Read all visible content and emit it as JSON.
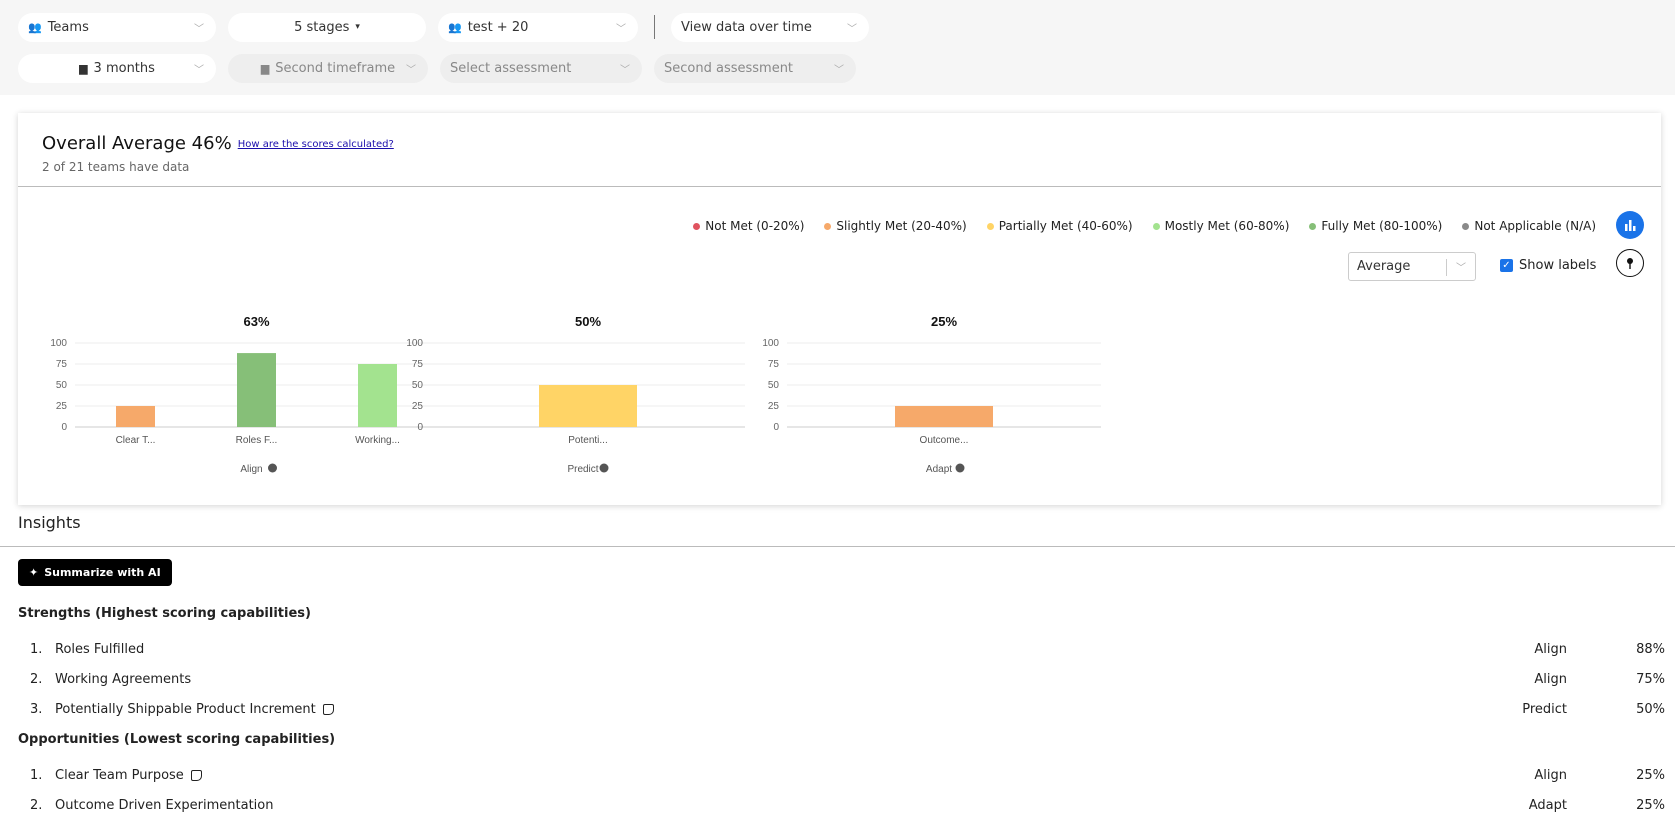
{
  "filters": {
    "row1": [
      {
        "icon": "users-icon",
        "label": "Teams"
      },
      {
        "label": "5 stages",
        "caret": "▾"
      },
      {
        "icon": "users-icon",
        "label": "test + 20"
      },
      {
        "label": "View data over time"
      }
    ],
    "row2": [
      {
        "icon": "calendar-icon",
        "label": "3 months"
      },
      {
        "icon": "calendar-icon",
        "label": "Second timeframe",
        "disabled": true
      },
      {
        "label": "Select assessment",
        "disabled": true
      },
      {
        "label": "Second assessment",
        "disabled": true
      }
    ]
  },
  "summary": {
    "title": "Overall Average 46%",
    "link": "How are the scores calculated?",
    "subtitle": "2 of 21 teams have data"
  },
  "legend": [
    {
      "label": "Not Met (0-20%)",
      "color": "#e0535f"
    },
    {
      "label": "Slightly Met (20-40%)",
      "color": "#f6a96a"
    },
    {
      "label": "Partially Met (40-60%)",
      "color": "#ffd466"
    },
    {
      "label": "Mostly Met (60-80%)",
      "color": "#a3e38f"
    },
    {
      "label": "Fully Met (80-100%)",
      "color": "#86bf78"
    },
    {
      "label": "Not Applicable (N/A)",
      "color": "#8a8a8a"
    }
  ],
  "controls": {
    "aggregate": "Average",
    "show_labels": "Show labels",
    "show_labels_checked": true
  },
  "chart_data": [
    {
      "type": "bar",
      "title": "63%",
      "xlabel": "Align",
      "ylim": [
        0,
        100
      ],
      "yticks": [
        0,
        25,
        50,
        75,
        100
      ],
      "grid": true,
      "categories": [
        "Clear T...",
        "Roles F...",
        "Working..."
      ],
      "values": [
        25,
        88,
        75
      ],
      "colors": [
        "#f6a96a",
        "#86bf78",
        "#a3e38f"
      ]
    },
    {
      "type": "bar",
      "title": "50%",
      "xlabel": "Predict",
      "ylim": [
        0,
        100
      ],
      "yticks": [
        0,
        25,
        50,
        75,
        100
      ],
      "grid": true,
      "categories": [
        "Potenti..."
      ],
      "values": [
        50
      ],
      "colors": [
        "#ffd466"
      ]
    },
    {
      "type": "bar",
      "title": "25%",
      "xlabel": "Adapt",
      "ylim": [
        0,
        100
      ],
      "yticks": [
        0,
        25,
        50,
        75,
        100
      ],
      "grid": true,
      "categories": [
        "Outcome..."
      ],
      "values": [
        25
      ],
      "colors": [
        "#f6a96a"
      ]
    }
  ],
  "insights": {
    "title": "Insights",
    "ai_button": "Summarize with AI",
    "strengths_title": "Strengths (Highest scoring capabilities)",
    "strengths": [
      {
        "num": "1.",
        "name": "Roles Fulfilled",
        "category": "Align",
        "pct": "88%",
        "note": false
      },
      {
        "num": "2.",
        "name": "Working Agreements",
        "category": "Align",
        "pct": "75%",
        "note": false
      },
      {
        "num": "3.",
        "name": "Potentially Shippable Product Increment",
        "category": "Predict",
        "pct": "50%",
        "note": true
      }
    ],
    "opportunities_title": "Opportunities (Lowest scoring capabilities)",
    "opportunities": [
      {
        "num": "1.",
        "name": "Clear Team Purpose",
        "category": "Align",
        "pct": "25%",
        "note": true
      },
      {
        "num": "2.",
        "name": "Outcome Driven Experimentation",
        "category": "Adapt",
        "pct": "25%",
        "note": false
      }
    ]
  }
}
